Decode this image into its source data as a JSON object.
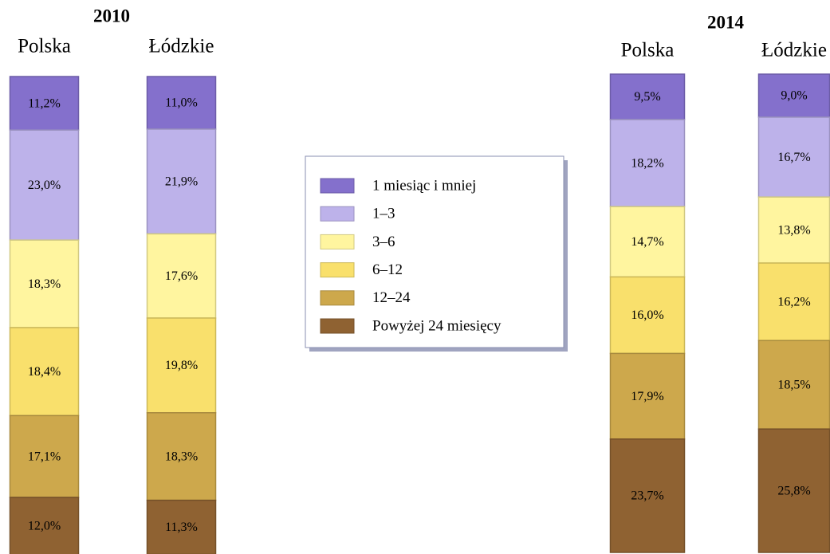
{
  "chart_data": [
    {
      "type": "stacked-bar",
      "title": "2010",
      "categories": [
        "Polska",
        "Łódzkie"
      ],
      "series": [
        {
          "name": "1 miesiąc i mniej",
          "color": "#8470cc",
          "values": [
            11.2,
            11.0
          ],
          "value_labels": [
            "11,2%",
            "11,0%"
          ]
        },
        {
          "name": "1–3",
          "color": "#bdb2ea",
          "values": [
            23.0,
            21.9
          ],
          "value_labels": [
            "23,0%",
            "21,9%"
          ]
        },
        {
          "name": "3–6",
          "color": "#fff59f",
          "values": [
            18.3,
            17.6
          ],
          "value_labels": [
            "18,3%",
            "17,6%"
          ]
        },
        {
          "name": "6–12",
          "color": "#f9e06c",
          "values": [
            18.4,
            19.8
          ],
          "value_labels": [
            "18,4%",
            "19,8%"
          ]
        },
        {
          "name": "12–24",
          "color": "#cda84c",
          "values": [
            17.1,
            18.3
          ],
          "value_labels": [
            "17,1%",
            "18,3%"
          ]
        },
        {
          "name": "Powyżej 24 miesięcy",
          "color": "#8f6232",
          "values": [
            12.0,
            11.3
          ],
          "value_labels": [
            "12,0%",
            "11,3%"
          ]
        }
      ]
    },
    {
      "type": "stacked-bar",
      "title": "2014",
      "categories": [
        "Polska",
        "Łódzkie"
      ],
      "series": [
        {
          "name": "1 miesiąc i mniej",
          "color": "#8470cc",
          "values": [
            9.5,
            9.0
          ],
          "value_labels": [
            "9,5%",
            "9,0%"
          ]
        },
        {
          "name": "1–3",
          "color": "#bdb2ea",
          "values": [
            18.2,
            16.7
          ],
          "value_labels": [
            "18,2%",
            "16,7%"
          ]
        },
        {
          "name": "3–6",
          "color": "#fff59f",
          "values": [
            14.7,
            13.8
          ],
          "value_labels": [
            "14,7%",
            "13,8%"
          ]
        },
        {
          "name": "6–12",
          "color": "#f9e06c",
          "values": [
            16.0,
            16.2
          ],
          "value_labels": [
            "16,0%",
            "16,2%"
          ]
        },
        {
          "name": "12–24",
          "color": "#cda84c",
          "values": [
            17.9,
            18.5
          ],
          "value_labels": [
            "17,9%",
            "18,5%"
          ]
        },
        {
          "name": "Powyżej 24 miesięcy",
          "color": "#8f6232",
          "values": [
            23.7,
            25.8
          ],
          "value_labels": [
            "23,7%",
            "25,8%"
          ]
        }
      ]
    }
  ]
}
